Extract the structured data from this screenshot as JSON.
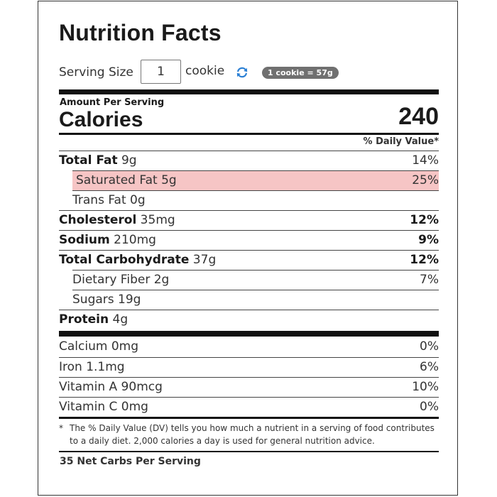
{
  "title": "Nutrition Facts",
  "serving": {
    "label": "Serving Size",
    "quantity": "1",
    "unit": "cookie",
    "badge": "1 cookie = 57g",
    "refresh_icon": "refresh-icon"
  },
  "calories": {
    "amount_per_serving": "Amount Per Serving",
    "label": "Calories",
    "value": "240"
  },
  "daily_value_header": "% Daily Value*",
  "nutrients": [
    {
      "name": "Total Fat",
      "amount": " 9g",
      "dv": "14%"
    },
    {
      "name": "Saturated Fat 5g",
      "amount": "",
      "dv": "25%"
    },
    {
      "name": "Trans Fat 0g",
      "amount": "",
      "dv": ""
    },
    {
      "name": "Cholesterol",
      "amount": " 35mg",
      "dv": "12%"
    },
    {
      "name": "Sodium",
      "amount": " 210mg",
      "dv": "9%"
    },
    {
      "name": "Total Carbohydrate",
      "amount": " 37g",
      "dv": "12%"
    },
    {
      "name": "Dietary Fiber 2g",
      "amount": "",
      "dv": "7%"
    },
    {
      "name": "Sugars 19g",
      "amount": "",
      "dv": ""
    },
    {
      "name": "Protein",
      "amount": " 4g",
      "dv": ""
    }
  ],
  "vitamins": [
    {
      "name": "Calcium 0mg",
      "dv": "0%"
    },
    {
      "name": "Iron 1.1mg",
      "dv": "6%"
    },
    {
      "name": "Vitamin A 90mcg",
      "dv": "10%"
    },
    {
      "name": "Vitamin C 0mg",
      "dv": "0%"
    }
  ],
  "footnote": {
    "star": "*",
    "text": "The % Daily Value (DV) tells you how much a nutrient in a serving of food contributes to a daily diet. 2,000 calories a day is used for general nutrition advice."
  },
  "net_carbs": "35 Net Carbs Per Serving",
  "colors": {
    "highlight": "#f6c5c5",
    "badge": "#707070",
    "refresh": "#2a7fd4"
  }
}
